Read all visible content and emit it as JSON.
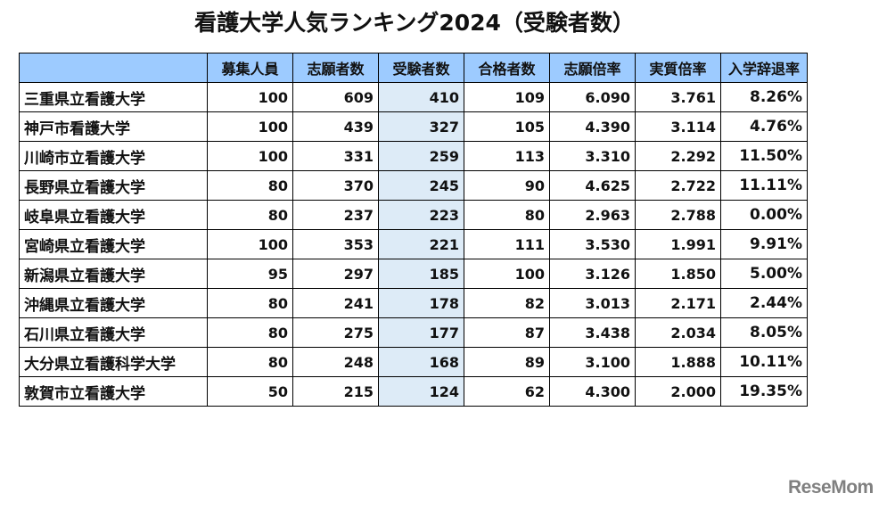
{
  "title": "看護大学人気ランキング2024（受験者数）",
  "logo_text": "ReseMom",
  "colors": {
    "header_bg": "#9dcbff",
    "highlight_column_bg": "#ddebf7"
  },
  "chart_data": {
    "type": "table",
    "title": "看護大学人気ランキング2024（受験者数）",
    "columns": [
      "",
      "募集人員",
      "志願者数",
      "受験者数",
      "合格者数",
      "志願倍率",
      "実質倍率",
      "入学辞退率"
    ],
    "highlighted_column": "受験者数",
    "rows": [
      [
        "三重県立看護大学",
        "100",
        "609",
        "410",
        "109",
        "6.090",
        "3.761",
        "8.26%"
      ],
      [
        "神戸市看護大学",
        "100",
        "439",
        "327",
        "105",
        "4.390",
        "3.114",
        "4.76%"
      ],
      [
        "川崎市立看護大学",
        "100",
        "331",
        "259",
        "113",
        "3.310",
        "2.292",
        "11.50%"
      ],
      [
        "長野県立看護大学",
        "80",
        "370",
        "245",
        "90",
        "4.625",
        "2.722",
        "11.11%"
      ],
      [
        "岐阜県立看護大学",
        "80",
        "237",
        "223",
        "80",
        "2.963",
        "2.788",
        "0.00%"
      ],
      [
        "宮崎県立看護大学",
        "100",
        "353",
        "221",
        "111",
        "3.530",
        "1.991",
        "9.91%"
      ],
      [
        "新潟県立看護大学",
        "95",
        "297",
        "185",
        "100",
        "3.126",
        "1.850",
        "5.00%"
      ],
      [
        "沖縄県立看護大学",
        "80",
        "241",
        "178",
        "82",
        "3.013",
        "2.171",
        "2.44%"
      ],
      [
        "石川県立看護大学",
        "80",
        "275",
        "177",
        "87",
        "3.438",
        "2.034",
        "8.05%"
      ],
      [
        "大分県立看護科学大学",
        "80",
        "248",
        "168",
        "89",
        "3.100",
        "1.888",
        "10.11%"
      ],
      [
        "敦賀市立看護大学",
        "50",
        "215",
        "124",
        "62",
        "4.300",
        "2.000",
        "19.35%"
      ]
    ]
  }
}
